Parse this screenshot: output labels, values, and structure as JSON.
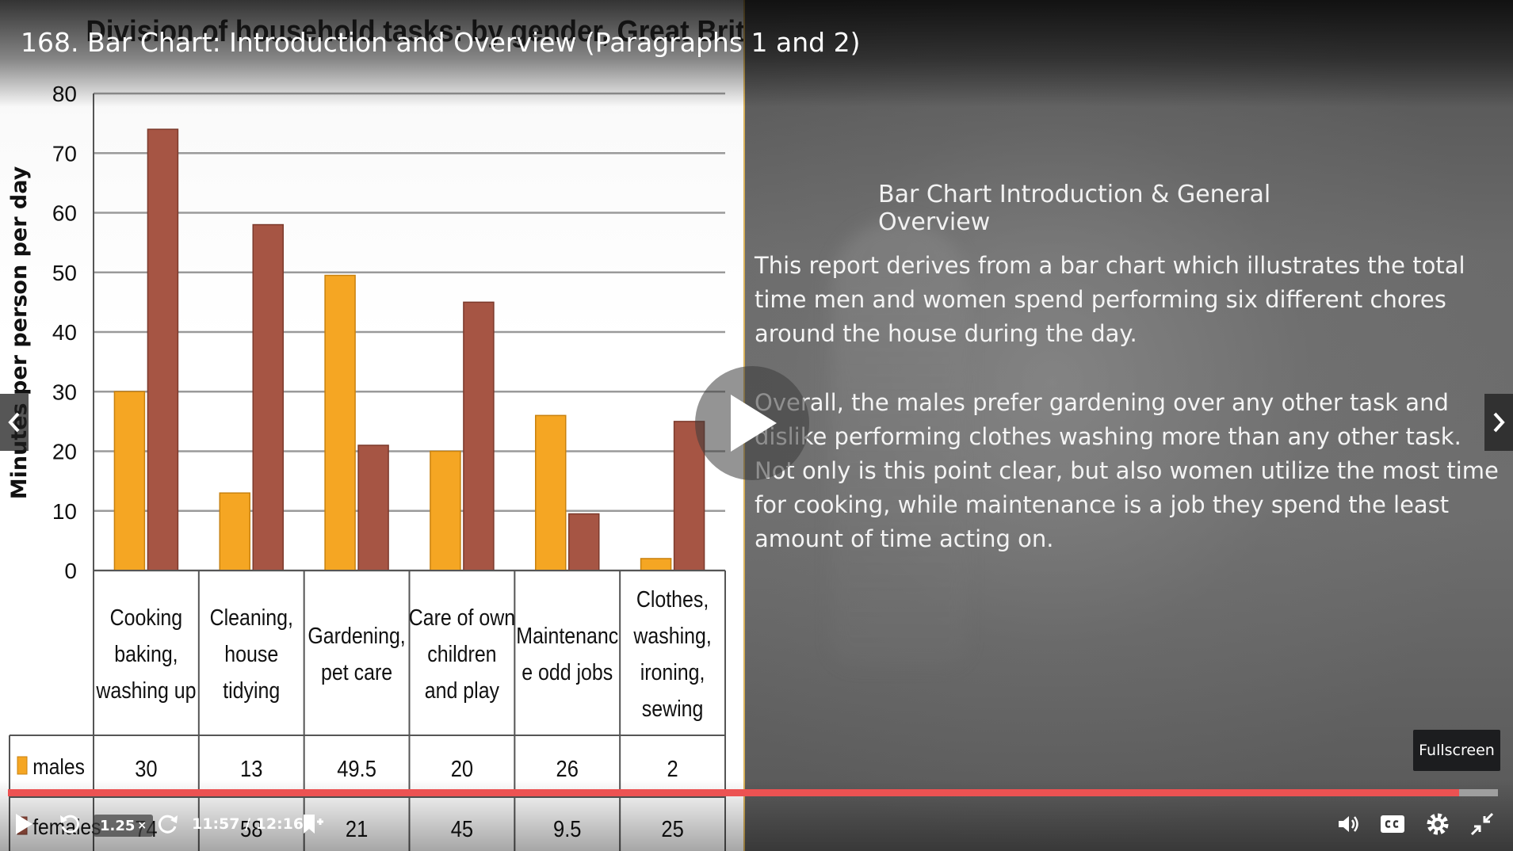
{
  "lecture_title": "168. Bar Chart: Introduction and Overview (Paragraphs 1 and 2)",
  "slide": {
    "heading": "Bar Chart Introduction & General Overview",
    "paragraphs": [
      "This report derives from a bar chart which illustrates the total time men and women spend performing six different chores around the house during the day.",
      "Overall, the males prefer gardening over any other task and dislike performing clothes washing more than any other task. Not only is this point clear, but also women utilize the most time for cooking, while maintenance is a job they spend the least amount of time acting on."
    ]
  },
  "chart_data": {
    "type": "bar",
    "title": "Division of household tasks: by gender, Great Britain",
    "ylabel": "Minutes per person per day",
    "xlabel": "",
    "ylim": [
      0,
      80
    ],
    "yticks": [
      0,
      10,
      20,
      30,
      40,
      50,
      60,
      70,
      80
    ],
    "grid": true,
    "categories": [
      [
        "Cooking",
        "baking,",
        "washing up"
      ],
      [
        "Cleaning,",
        "house",
        "tidying"
      ],
      [
        "Gardening,",
        "pet care"
      ],
      [
        "Care of own",
        "children",
        "and play"
      ],
      [
        "Maintenanc",
        "e odd jobs"
      ],
      [
        "Clothes,",
        "washing,",
        "ironing,",
        "sewing"
      ]
    ],
    "series": [
      {
        "name": "males",
        "color": "#f5a623",
        "values": [
          30,
          13,
          49.5,
          20,
          26,
          2
        ],
        "labels": [
          "30",
          "13",
          "49.5",
          "20",
          "26",
          "2"
        ]
      },
      {
        "name": "females",
        "color": "#a65544",
        "values": [
          74,
          58,
          21,
          45,
          9.5,
          25
        ],
        "labels": [
          "74",
          "58",
          "21",
          "45",
          "9.5",
          "25"
        ]
      }
    ]
  },
  "controls": {
    "speed": "1.25",
    "speed_suffix": "×",
    "time": "11:57 / 12:16",
    "progress": 0.974,
    "fullscreen_tooltip": "Fullscreen"
  },
  "icons": {
    "play": "play-icon",
    "rewind": "rewind-icon",
    "forward": "forward-icon",
    "bookmark": "bookmark-icon",
    "volume": "volume-icon",
    "cc": "cc-icon",
    "settings": "gear-icon",
    "exit_fullscreen": "exit-fullscreen-icon",
    "prev": "chevron-left-icon",
    "next": "chevron-right-icon"
  },
  "colors": {
    "accent": "#ec5252",
    "males": "#f5a623",
    "females": "#a65544"
  }
}
